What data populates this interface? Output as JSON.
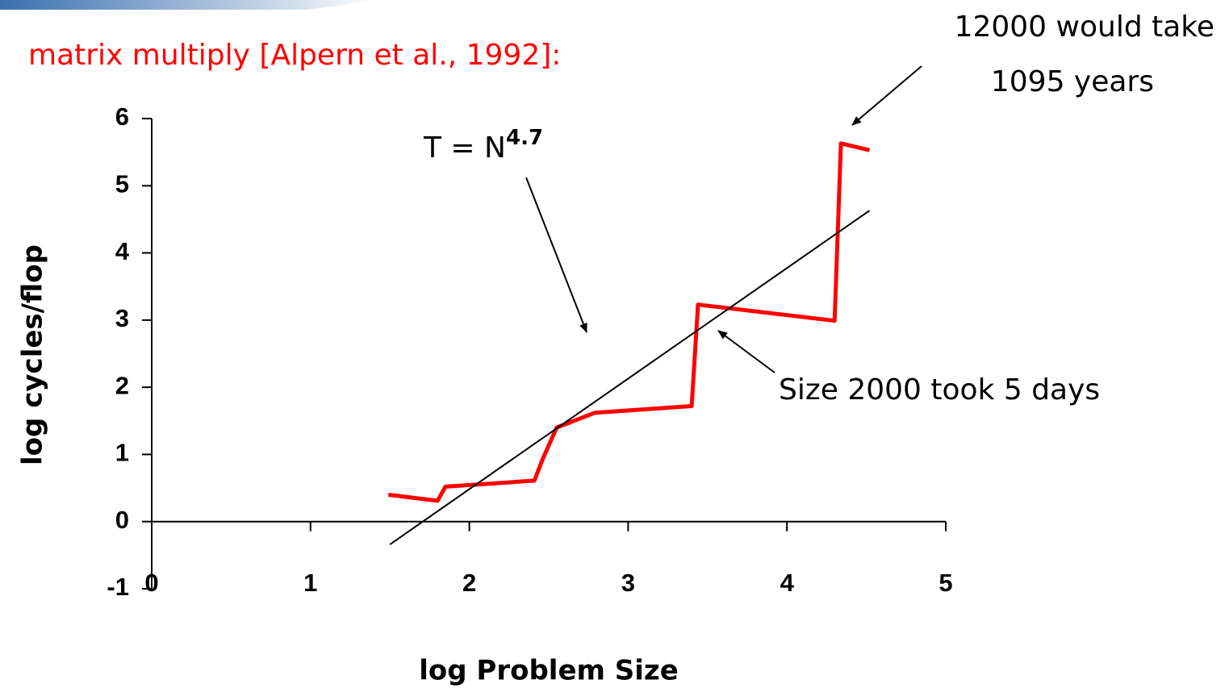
{
  "chart_data": {
    "type": "line",
    "title": "matrix multiply [Alpern et al., 1992]:",
    "x_label": "log Problem Size",
    "y_label": "log cycles/flop",
    "xlim": [
      0,
      5
    ],
    "xticks": [
      0,
      1,
      2,
      3,
      4,
      5
    ],
    "ylim": [
      -1,
      6
    ],
    "yticks": [
      -1,
      0,
      1,
      2,
      3,
      4,
      5,
      6
    ],
    "series": [
      {
        "color": "#ff0000",
        "x": [
          1.49,
          1.8,
          1.85,
          2.41,
          2.46,
          2.55,
          2.79,
          3.4,
          3.44,
          4.3,
          4.34,
          4.52
        ],
        "values": [
          0.4,
          0.31,
          0.52,
          0.61,
          0.92,
          1.4,
          1.62,
          1.72,
          3.23,
          2.99,
          5.63,
          5.53
        ]
      },
      {
        "color": "#000000",
        "x": [
          1.5,
          4.52
        ],
        "values": [
          -0.34,
          4.63
        ]
      }
    ],
    "annotations": [
      {
        "text": "T = N",
        "superscript": "4.7"
      },
      {
        "lines": [
          "12000 would take",
          "1095 years"
        ]
      },
      {
        "text": "Size 2000 took 5 days"
      }
    ]
  }
}
